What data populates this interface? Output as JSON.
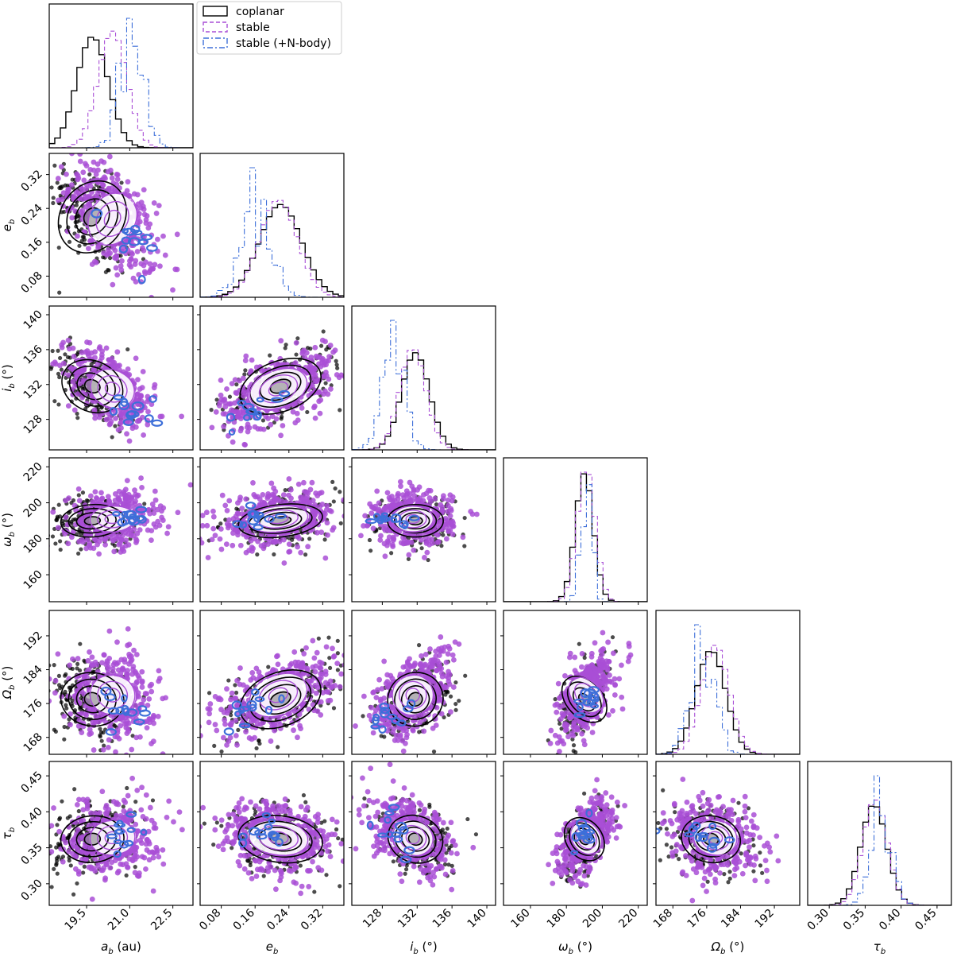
{
  "chart_data": {
    "type": "corner",
    "colors": {
      "coplanar": "#000000",
      "stable": "#a94fd6",
      "nbody": "#3d6fd9"
    },
    "legend": {
      "placement": "top-left",
      "entries": [
        {
          "key": "coplanar",
          "label": "coplanar",
          "linestyle": "solid"
        },
        {
          "key": "stable",
          "label": "stable",
          "linestyle": "dashed"
        },
        {
          "key": "nbody",
          "label": "stable (+N-body)",
          "linestyle": "dashdot"
        }
      ]
    },
    "parameters": [
      {
        "key": "a",
        "label": "a_b (au)",
        "range": [
          18.2,
          23.2
        ],
        "ticks": [
          19.5,
          21.0,
          22.5
        ],
        "tick_labels": [
          "19.5",
          "21.0",
          "22.5"
        ],
        "means": {
          "coplanar": 19.7,
          "stable": 20.4,
          "nbody": 21.05
        },
        "sds": {
          "coplanar": 0.55,
          "stable": 0.5,
          "nbody": 0.4
        }
      },
      {
        "key": "e",
        "label": "e_b",
        "range": [
          0.03,
          0.37
        ],
        "ticks": [
          0.08,
          0.16,
          0.24,
          0.32
        ],
        "tick_labels": [
          "0.08",
          "0.16",
          "0.24",
          "0.32"
        ],
        "means": {
          "coplanar": 0.22,
          "stable": 0.215,
          "nbody": 0.16
        },
        "sds": {
          "coplanar": 0.05,
          "stable": 0.045,
          "nbody": 0.035
        }
      },
      {
        "key": "i",
        "label": "i_b (°)",
        "range": [
          124.5,
          141.0
        ],
        "ticks": [
          128,
          132,
          136,
          140
        ],
        "tick_labels": [
          "128",
          "132",
          "136",
          "140"
        ],
        "means": {
          "coplanar": 131.8,
          "stable": 131.5,
          "nbody": 129.2
        },
        "sds": {
          "coplanar": 1.6,
          "stable": 1.5,
          "nbody": 1.3
        }
      },
      {
        "key": "omega",
        "label": "ω_b (°)",
        "range": [
          145,
          225
        ],
        "ticks": [
          160,
          180,
          200,
          220
        ],
        "tick_labels": [
          "160",
          "180",
          "200",
          "220"
        ],
        "means": {
          "coplanar": 190,
          "stable": 191,
          "nbody": 191
        },
        "sds": {
          "coplanar": 5,
          "stable": 5,
          "nbody": 3
        }
      },
      {
        "key": "Omega",
        "label": "Ω_b (°)",
        "range": [
          164,
          198
        ],
        "ticks": [
          168,
          176,
          184,
          192
        ],
        "tick_labels": [
          "168",
          "176",
          "184",
          "192"
        ],
        "means": {
          "coplanar": 177,
          "stable": 178,
          "nbody": 175
        },
        "sds": {
          "coplanar": 3.5,
          "stable": 3.3,
          "nbody": 2.8
        }
      },
      {
        "key": "tau",
        "label": "τ_b",
        "range": [
          0.27,
          0.47
        ],
        "ticks": [
          0.3,
          0.35,
          0.4,
          0.45
        ],
        "tick_labels": [
          "0.30",
          "0.35",
          "0.40",
          "0.45"
        ],
        "means": {
          "coplanar": 0.362,
          "stable": 0.364,
          "nbody": 0.372
        },
        "sds": {
          "coplanar": 0.018,
          "stable": 0.017,
          "nbody": 0.014
        }
      }
    ],
    "correlations": {
      "a-e": -0.55,
      "a-i": -0.55,
      "a-omega": 0.1,
      "a-Omega": -0.15,
      "a-tau": 0.1,
      "e-i": 0.55,
      "e-omega": 0.25,
      "e-Omega": 0.55,
      "e-tau": -0.2,
      "i-omega": 0.0,
      "i-Omega": 0.45,
      "i-tau": -0.4,
      "omega-Omega": 0.6,
      "omega-tau": 0.55,
      "Omega-tau": -0.2
    }
  }
}
